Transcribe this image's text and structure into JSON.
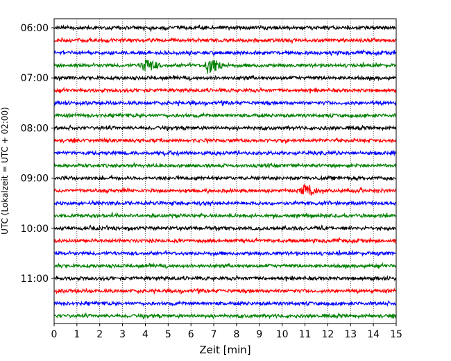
{
  "chart_data": {
    "type": "line",
    "subtype": "helicorder",
    "xlabel": "Zeit  [min]",
    "ylabel": "UTC (Lokalzeit = UTC + 02:00)",
    "xlim": [
      0,
      15
    ],
    "x_ticks": [
      "0",
      "1",
      "2",
      "3",
      "4",
      "5",
      "6",
      "7",
      "8",
      "9",
      "10",
      "11",
      "12",
      "13",
      "14",
      "15"
    ],
    "y_ticks": [
      "06:00",
      "07:00",
      "08:00",
      "09:00",
      "10:00",
      "11:00"
    ],
    "grid": "vertical dotted",
    "trace_interval_minutes": 15,
    "trace_color_cycle": [
      "#000000",
      "#ff0000",
      "#0000ff",
      "#008000"
    ],
    "traces": [
      {
        "start": "06:00",
        "color": "#000000"
      },
      {
        "start": "06:15",
        "color": "#ff0000"
      },
      {
        "start": "06:30",
        "color": "#0000ff"
      },
      {
        "start": "06:45",
        "color": "#008000",
        "events": [
          {
            "t_min": 4.0,
            "amplitude": 9
          },
          {
            "t_min": 6.8,
            "amplitude": 12
          }
        ]
      },
      {
        "start": "07:00",
        "color": "#000000"
      },
      {
        "start": "07:15",
        "color": "#ff0000"
      },
      {
        "start": "07:30",
        "color": "#0000ff"
      },
      {
        "start": "07:45",
        "color": "#008000"
      },
      {
        "start": "08:00",
        "color": "#000000"
      },
      {
        "start": "08:15",
        "color": "#ff0000"
      },
      {
        "start": "08:30",
        "color": "#0000ff"
      },
      {
        "start": "08:45",
        "color": "#008000"
      },
      {
        "start": "09:00",
        "color": "#000000"
      },
      {
        "start": "09:15",
        "color": "#ff0000",
        "events": [
          {
            "t_min": 11.0,
            "amplitude": 8
          }
        ]
      },
      {
        "start": "09:30",
        "color": "#0000ff"
      },
      {
        "start": "09:45",
        "color": "#008000"
      },
      {
        "start": "10:00",
        "color": "#000000"
      },
      {
        "start": "10:15",
        "color": "#ff0000"
      },
      {
        "start": "10:30",
        "color": "#0000ff"
      },
      {
        "start": "10:45",
        "color": "#008000"
      },
      {
        "start": "11:00",
        "color": "#000000"
      },
      {
        "start": "11:15",
        "color": "#ff0000"
      },
      {
        "start": "11:30",
        "color": "#0000ff"
      },
      {
        "start": "11:45",
        "color": "#008000"
      }
    ]
  }
}
